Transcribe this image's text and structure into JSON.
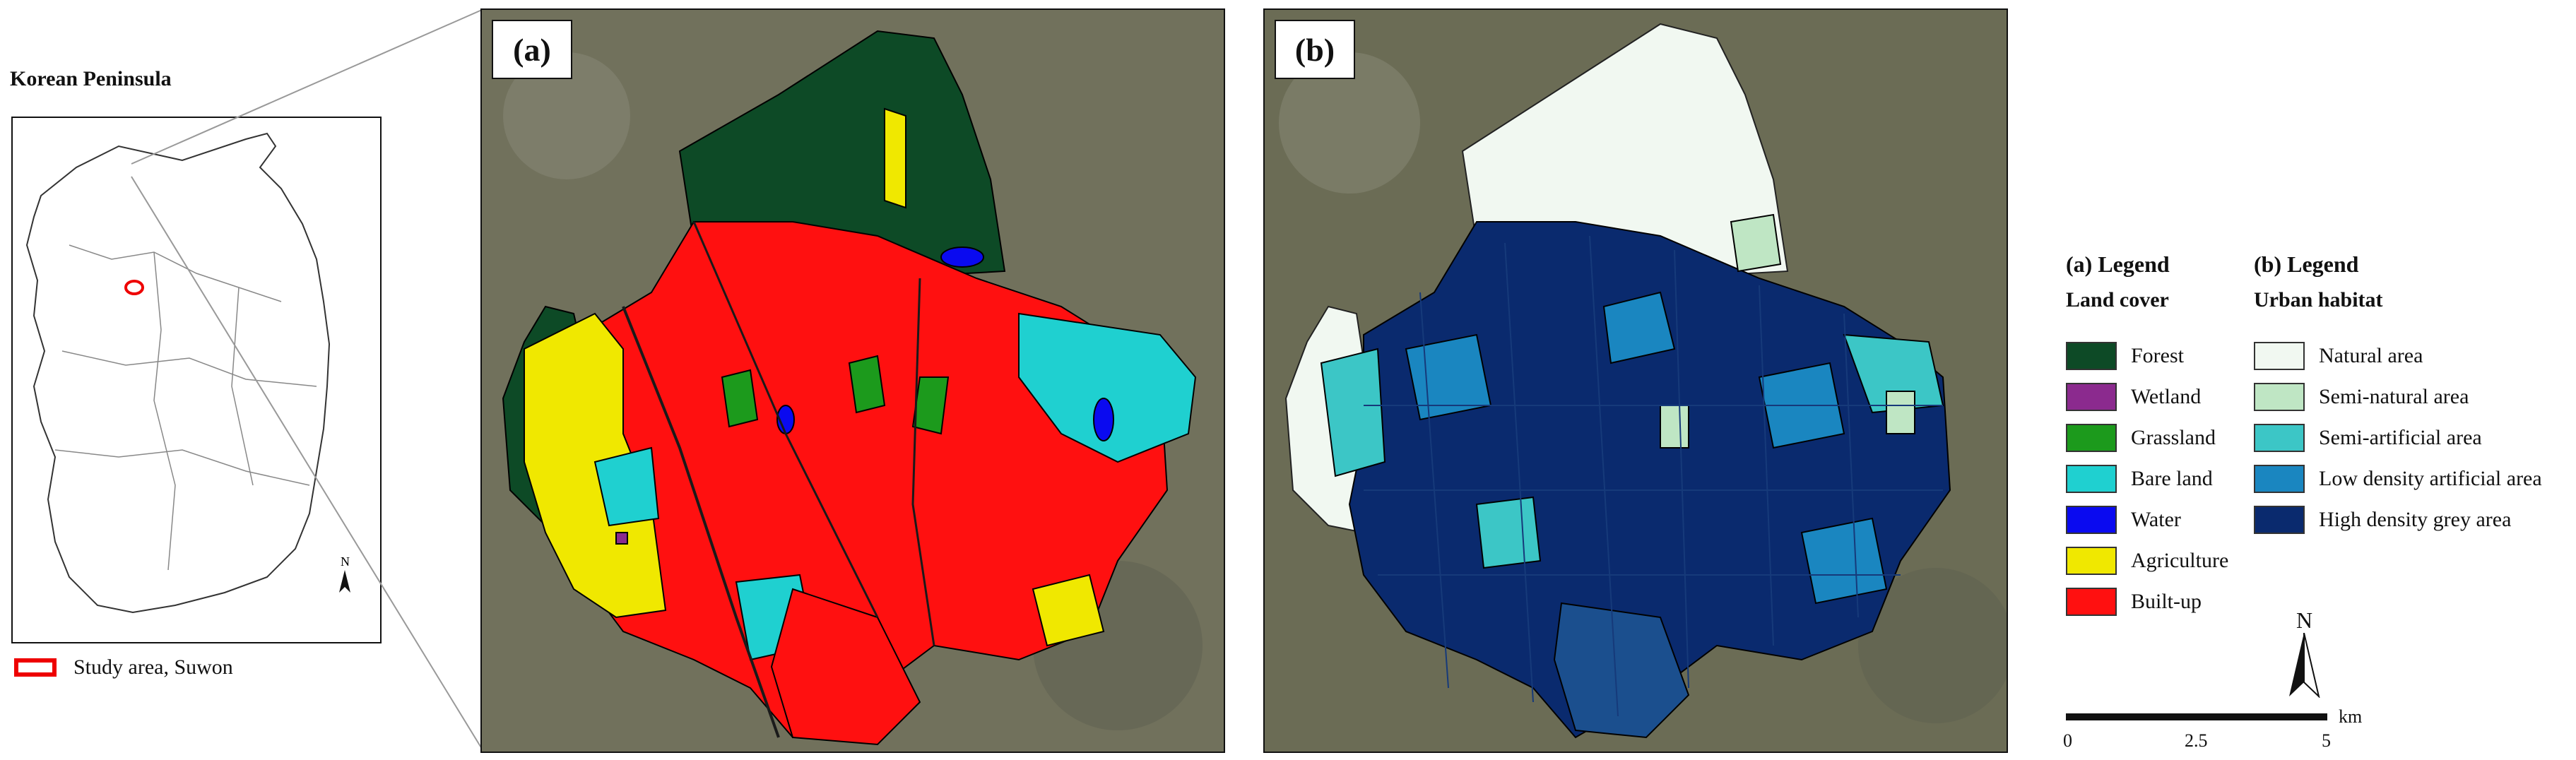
{
  "inset": {
    "title": "Korean Peninsula",
    "legend_label": "Study area, Suwon",
    "north_label": "N"
  },
  "panels": [
    {
      "label": "(a)"
    },
    {
      "label": "(b)"
    }
  ],
  "legend_a": {
    "heading": "(a) Legend",
    "subheading": "Land cover",
    "items": [
      {
        "label": "Forest",
        "color": "#0d4a26"
      },
      {
        "label": "Wetland",
        "color": "#8b2a8e"
      },
      {
        "label": "Grassland",
        "color": "#1c9a1c"
      },
      {
        "label": "Bare land",
        "color": "#1fd0d0"
      },
      {
        "label": "Water",
        "color": "#0a0af0"
      },
      {
        "label": "Agriculture",
        "color": "#f0e800"
      },
      {
        "label": "Built-up",
        "color": "#ff1010"
      }
    ]
  },
  "legend_b": {
    "heading": "(b) Legend",
    "subheading": "Urban habitat",
    "items": [
      {
        "label": "Natural area",
        "color": "#f1f8f1"
      },
      {
        "label": "Semi-natural area",
        "color": "#bfe6c4"
      },
      {
        "label": "Semi-artificial area",
        "color": "#3cc6c6"
      },
      {
        "label": "Low density artificial area",
        "color": "#1a86c0"
      },
      {
        "label": "High density grey area",
        "color": "#0a2a6e"
      }
    ]
  },
  "scale": {
    "ticks": [
      "0",
      "2.5",
      "5"
    ],
    "unit": "km",
    "north_label": "N"
  }
}
